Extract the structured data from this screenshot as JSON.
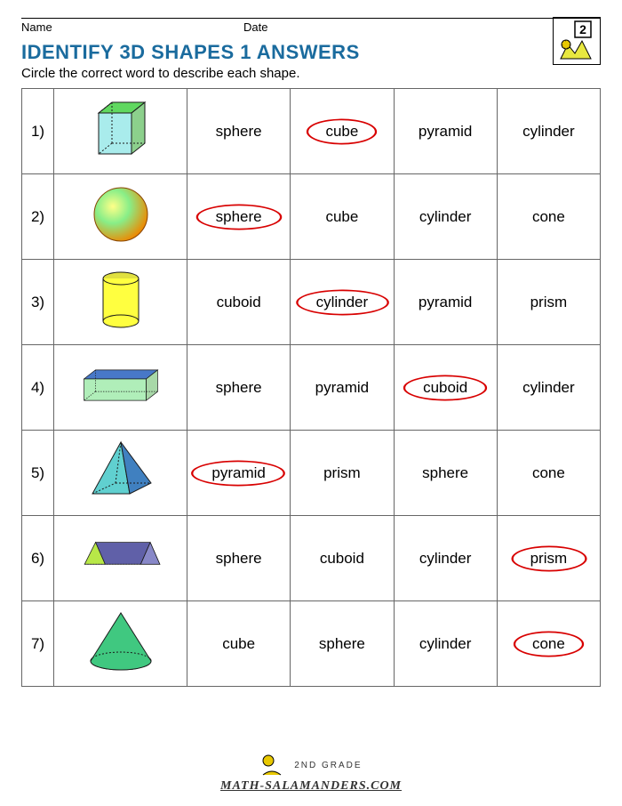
{
  "meta": {
    "name_label": "Name",
    "date_label": "Date"
  },
  "title": "IDENTIFY 3D SHAPES 1 ANSWERS",
  "title_color": "#1a6b9e",
  "instruction": "Circle the correct word to describe each shape.",
  "circle_color": "#d80000",
  "border_color": "#666666",
  "rows": [
    {
      "num": "1)",
      "shape": "cube",
      "options": [
        "sphere",
        "cube",
        "pyramid",
        "cylinder"
      ],
      "answer_index": 1
    },
    {
      "num": "2)",
      "shape": "sphere",
      "options": [
        "sphere",
        "cube",
        "cylinder",
        "cone"
      ],
      "answer_index": 0
    },
    {
      "num": "3)",
      "shape": "cylinder",
      "options": [
        "cuboid",
        "cylinder",
        "pyramid",
        "prism"
      ],
      "answer_index": 1
    },
    {
      "num": "4)",
      "shape": "cuboid",
      "options": [
        "sphere",
        "pyramid",
        "cuboid",
        "cylinder"
      ],
      "answer_index": 2
    },
    {
      "num": "5)",
      "shape": "pyramid",
      "options": [
        "pyramid",
        "prism",
        "sphere",
        "cone"
      ],
      "answer_index": 0
    },
    {
      "num": "6)",
      "shape": "prism",
      "options": [
        "sphere",
        "cuboid",
        "cylinder",
        "prism"
      ],
      "answer_index": 3
    },
    {
      "num": "7)",
      "shape": "cone",
      "options": [
        "cube",
        "sphere",
        "cylinder",
        "cone"
      ],
      "answer_index": 3
    }
  ],
  "shape_colors": {
    "cube": {
      "top": "#60d860",
      "front": "#70e0e0",
      "side": "#40b040",
      "edge": "#1a1a1a"
    },
    "sphere": {
      "light": "#ffff88",
      "dark": "#ee8800",
      "highlight": "#88ee88"
    },
    "cylinder": {
      "top": "#e0e040",
      "side": "#ffff40",
      "edge": "#1a1a1a"
    },
    "cuboid": {
      "top": "#4878c8",
      "front": "#70e080",
      "side": "#60b860",
      "edge": "#1a1a1a"
    },
    "pyramid": {
      "front": "#60d0d0",
      "side": "#4080c0",
      "edge": "#1a1a1a"
    },
    "prism": {
      "front": "#b8e848",
      "side": "#8888c8",
      "top": "#6060a8",
      "edge": "#1a1a1a"
    },
    "cone": {
      "side": "#40c880",
      "base": "#e0e040",
      "edge": "#1a1a1a"
    }
  },
  "footer": {
    "line1": "2ND GRADE",
    "line2": "MATH-SALAMANDERS.COM"
  },
  "logo_badge": "2"
}
